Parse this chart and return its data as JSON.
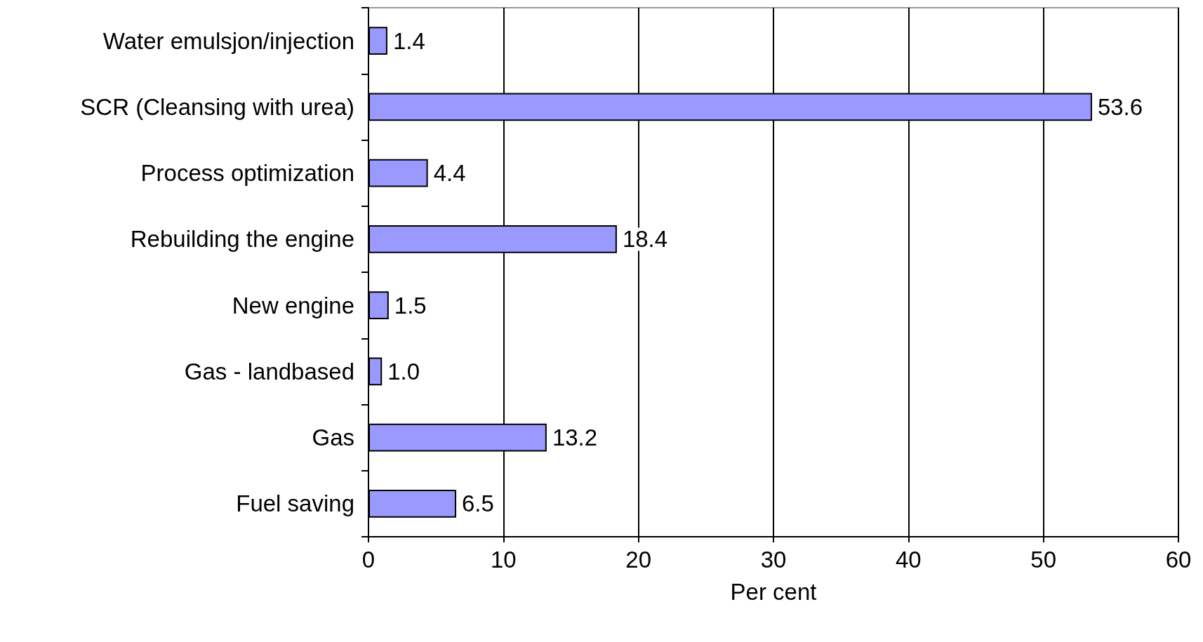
{
  "chart_data": {
    "type": "bar",
    "orientation": "horizontal",
    "xlabel": "Per cent",
    "categories": [
      "Water emulsjon/injection",
      "SCR (Cleansing with urea)",
      "Process optimization",
      "Rebuilding the engine",
      "New engine",
      "Gas - landbased",
      "Gas",
      "Fuel saving"
    ],
    "values": [
      1.4,
      53.6,
      4.4,
      18.4,
      1.5,
      1.0,
      13.2,
      6.5
    ],
    "value_labels": [
      "1.4",
      "53.6",
      "4.4",
      "18.4",
      "1.5",
      "1.0",
      "13.2",
      "6.5"
    ],
    "color": "#9999ff",
    "xlim": [
      0,
      60
    ],
    "xticks": [
      0,
      10,
      20,
      30,
      40,
      50,
      60
    ],
    "grid": "x"
  }
}
